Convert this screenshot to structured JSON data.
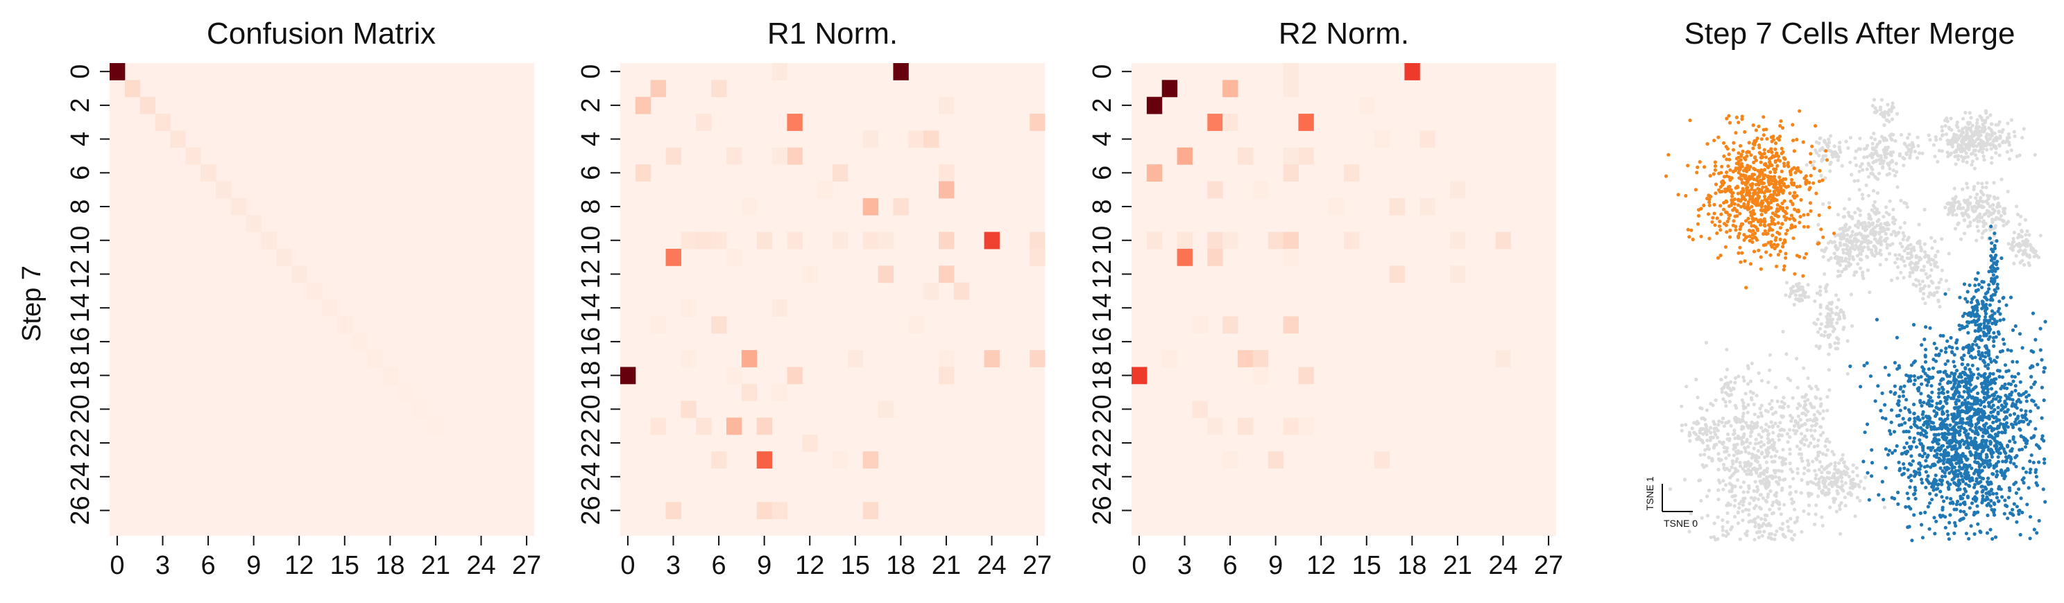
{
  "chart_data": [
    {
      "type": "heatmap",
      "title": "Confusion Matrix",
      "ylabel": "Step 7",
      "xlabel": "",
      "n_cols": 28,
      "n_rows": 28,
      "xticks": [
        "0",
        "3",
        "6",
        "9",
        "12",
        "15",
        "18",
        "21",
        "24",
        "27"
      ],
      "xtick_positions": [
        0,
        3,
        6,
        9,
        12,
        15,
        18,
        21,
        24,
        27
      ],
      "yticks": [
        "0",
        "2",
        "4",
        "6",
        "8",
        "10",
        "12",
        "14",
        "16",
        "18",
        "20",
        "22",
        "24",
        "26"
      ],
      "yticks_row": [
        0,
        2,
        4,
        6,
        8,
        10,
        12,
        14,
        16,
        18,
        20,
        22,
        24,
        26
      ],
      "colormap": [
        "#fff5f0",
        "#fee0d2",
        "#fcbba1",
        "#fc9272",
        "#fb6a4a",
        "#ef3b2c",
        "#cb181d",
        "#67000d"
      ],
      "background_value": 0.04,
      "cells": [
        [
          0,
          0,
          1.0
        ],
        [
          1,
          1,
          0.16
        ],
        [
          2,
          2,
          0.14
        ],
        [
          3,
          3,
          0.12
        ],
        [
          4,
          4,
          0.11
        ],
        [
          5,
          5,
          0.1
        ],
        [
          6,
          6,
          0.1
        ],
        [
          7,
          7,
          0.09
        ],
        [
          8,
          8,
          0.09
        ],
        [
          9,
          9,
          0.08
        ],
        [
          10,
          10,
          0.08
        ],
        [
          11,
          11,
          0.08
        ],
        [
          12,
          12,
          0.08
        ],
        [
          13,
          13,
          0.07
        ],
        [
          14,
          14,
          0.07
        ],
        [
          15,
          15,
          0.07
        ],
        [
          16,
          16,
          0.06
        ],
        [
          17,
          17,
          0.06
        ],
        [
          18,
          18,
          0.06
        ],
        [
          19,
          19,
          0.05
        ],
        [
          20,
          20,
          0.05
        ],
        [
          21,
          21,
          0.05
        ]
      ]
    },
    {
      "type": "heatmap",
      "title": "R1 Norm.",
      "xlabel": "",
      "ylabel": "",
      "n_cols": 28,
      "n_rows": 28,
      "xticks": [
        "0",
        "3",
        "6",
        "9",
        "12",
        "15",
        "18",
        "21",
        "24",
        "27"
      ],
      "xtick_positions": [
        0,
        3,
        6,
        9,
        12,
        15,
        18,
        21,
        24,
        27
      ],
      "yticks": [
        "0",
        "2",
        "4",
        "6",
        "8",
        "10",
        "12",
        "14",
        "16",
        "18",
        "20",
        "22",
        "24",
        "26"
      ],
      "yticks_row": [
        0,
        2,
        4,
        6,
        8,
        10,
        12,
        14,
        16,
        18,
        20,
        22,
        24,
        26
      ],
      "colormap": [
        "#fff5f0",
        "#fee0d2",
        "#fcbba1",
        "#fc9272",
        "#fb6a4a",
        "#ef3b2c",
        "#cb181d",
        "#67000d"
      ],
      "background_value": 0.03,
      "cells": [
        [
          0,
          18,
          1.0
        ],
        [
          0,
          10,
          0.08
        ],
        [
          1,
          2,
          0.22
        ],
        [
          1,
          6,
          0.14
        ],
        [
          2,
          1,
          0.24
        ],
        [
          2,
          21,
          0.08
        ],
        [
          3,
          5,
          0.1
        ],
        [
          3,
          11,
          0.5
        ],
        [
          3,
          27,
          0.2
        ],
        [
          4,
          16,
          0.08
        ],
        [
          4,
          19,
          0.1
        ],
        [
          4,
          20,
          0.16
        ],
        [
          5,
          3,
          0.14
        ],
        [
          5,
          7,
          0.1
        ],
        [
          5,
          11,
          0.2
        ],
        [
          5,
          10,
          0.08
        ],
        [
          6,
          1,
          0.16
        ],
        [
          6,
          14,
          0.14
        ],
        [
          6,
          21,
          0.1
        ],
        [
          7,
          21,
          0.28
        ],
        [
          7,
          13,
          0.06
        ],
        [
          8,
          16,
          0.3
        ],
        [
          8,
          18,
          0.14
        ],
        [
          8,
          8,
          0.06
        ],
        [
          10,
          4,
          0.1
        ],
        [
          10,
          5,
          0.12
        ],
        [
          10,
          6,
          0.1
        ],
        [
          10,
          9,
          0.12
        ],
        [
          10,
          11,
          0.1
        ],
        [
          10,
          14,
          0.08
        ],
        [
          10,
          16,
          0.1
        ],
        [
          10,
          17,
          0.08
        ],
        [
          10,
          21,
          0.18
        ],
        [
          10,
          24,
          0.7
        ],
        [
          10,
          27,
          0.14
        ],
        [
          11,
          3,
          0.52
        ],
        [
          11,
          7,
          0.06
        ],
        [
          11,
          27,
          0.12
        ],
        [
          12,
          17,
          0.18
        ],
        [
          12,
          21,
          0.2
        ],
        [
          12,
          12,
          0.06
        ],
        [
          13,
          22,
          0.14
        ],
        [
          13,
          20,
          0.08
        ],
        [
          14,
          4,
          0.06
        ],
        [
          14,
          10,
          0.08
        ],
        [
          15,
          6,
          0.14
        ],
        [
          15,
          2,
          0.06
        ],
        [
          15,
          19,
          0.06
        ],
        [
          17,
          8,
          0.34
        ],
        [
          17,
          4,
          0.06
        ],
        [
          17,
          15,
          0.08
        ],
        [
          17,
          24,
          0.22
        ],
        [
          17,
          27,
          0.18
        ],
        [
          17,
          21,
          0.06
        ],
        [
          18,
          0,
          1.0
        ],
        [
          18,
          11,
          0.18
        ],
        [
          18,
          21,
          0.12
        ],
        [
          18,
          7,
          0.06
        ],
        [
          19,
          8,
          0.12
        ],
        [
          19,
          10,
          0.06
        ],
        [
          20,
          4,
          0.14
        ],
        [
          20,
          17,
          0.08
        ],
        [
          21,
          2,
          0.1
        ],
        [
          21,
          7,
          0.3
        ],
        [
          21,
          9,
          0.18
        ],
        [
          21,
          5,
          0.12
        ],
        [
          22,
          12,
          0.1
        ],
        [
          23,
          9,
          0.6
        ],
        [
          23,
          6,
          0.12
        ],
        [
          23,
          16,
          0.2
        ],
        [
          23,
          14,
          0.06
        ],
        [
          26,
          3,
          0.16
        ],
        [
          26,
          9,
          0.16
        ],
        [
          26,
          10,
          0.12
        ],
        [
          26,
          16,
          0.16
        ]
      ]
    },
    {
      "type": "heatmap",
      "title": "R2 Norm.",
      "xlabel": "",
      "ylabel": "",
      "n_cols": 28,
      "n_rows": 28,
      "xticks": [
        "0",
        "3",
        "6",
        "9",
        "12",
        "15",
        "18",
        "21",
        "24",
        "27"
      ],
      "xtick_positions": [
        0,
        3,
        6,
        9,
        12,
        15,
        18,
        21,
        24,
        27
      ],
      "yticks": [
        "0",
        "2",
        "4",
        "6",
        "8",
        "10",
        "12",
        "14",
        "16",
        "18",
        "20",
        "22",
        "24",
        "26"
      ],
      "yticks_row": [
        0,
        2,
        4,
        6,
        8,
        10,
        12,
        14,
        16,
        18,
        20,
        22,
        24,
        26
      ],
      "colormap": [
        "#fff5f0",
        "#fee0d2",
        "#fcbba1",
        "#fc9272",
        "#fb6a4a",
        "#ef3b2c",
        "#cb181d",
        "#67000d"
      ],
      "background_value": 0.03,
      "cells": [
        [
          0,
          18,
          0.72
        ],
        [
          0,
          10,
          0.08
        ],
        [
          1,
          2,
          1.0
        ],
        [
          1,
          6,
          0.3
        ],
        [
          1,
          10,
          0.08
        ],
        [
          2,
          1,
          1.0
        ],
        [
          2,
          15,
          0.06
        ],
        [
          3,
          5,
          0.5
        ],
        [
          3,
          11,
          0.56
        ],
        [
          3,
          6,
          0.1
        ],
        [
          4,
          19,
          0.1
        ],
        [
          4,
          16,
          0.06
        ],
        [
          5,
          3,
          0.34
        ],
        [
          5,
          7,
          0.12
        ],
        [
          5,
          11,
          0.12
        ],
        [
          5,
          10,
          0.08
        ],
        [
          6,
          1,
          0.3
        ],
        [
          6,
          10,
          0.14
        ],
        [
          6,
          14,
          0.12
        ],
        [
          7,
          5,
          0.14
        ],
        [
          7,
          8,
          0.06
        ],
        [
          7,
          21,
          0.08
        ],
        [
          8,
          17,
          0.12
        ],
        [
          8,
          19,
          0.08
        ],
        [
          8,
          13,
          0.06
        ],
        [
          10,
          1,
          0.1
        ],
        [
          10,
          3,
          0.1
        ],
        [
          10,
          5,
          0.14
        ],
        [
          10,
          6,
          0.08
        ],
        [
          10,
          9,
          0.14
        ],
        [
          10,
          10,
          0.18
        ],
        [
          10,
          14,
          0.1
        ],
        [
          10,
          21,
          0.08
        ],
        [
          10,
          24,
          0.14
        ],
        [
          11,
          3,
          0.54
        ],
        [
          11,
          5,
          0.18
        ],
        [
          11,
          10,
          0.06
        ],
        [
          12,
          17,
          0.14
        ],
        [
          12,
          21,
          0.08
        ],
        [
          15,
          6,
          0.14
        ],
        [
          15,
          10,
          0.18
        ],
        [
          15,
          4,
          0.06
        ],
        [
          17,
          7,
          0.2
        ],
        [
          17,
          8,
          0.16
        ],
        [
          17,
          2,
          0.06
        ],
        [
          17,
          24,
          0.08
        ],
        [
          18,
          0,
          0.72
        ],
        [
          18,
          11,
          0.16
        ],
        [
          18,
          8,
          0.06
        ],
        [
          20,
          4,
          0.1
        ],
        [
          21,
          5,
          0.08
        ],
        [
          21,
          7,
          0.12
        ],
        [
          21,
          10,
          0.1
        ],
        [
          21,
          11,
          0.06
        ],
        [
          23,
          9,
          0.14
        ],
        [
          23,
          16,
          0.1
        ],
        [
          23,
          6,
          0.06
        ]
      ]
    },
    {
      "type": "scatter",
      "title": "Step 7 Cells After Merge",
      "xlabel": "TSNE 0",
      "ylabel": "TSNE 1",
      "xlim": [
        -100,
        100
      ],
      "ylim": [
        -100,
        100
      ],
      "grid": false,
      "legend": "none",
      "seed": 7,
      "series": [
        {
          "color": "#dcdcdc",
          "clusters": [
            {
              "cx": 22,
              "cy": 84,
              "sx": 3,
              "sy": 3,
              "n": 30
            },
            {
              "cx": -6,
              "cy": 66,
              "sx": 5,
              "sy": 4,
              "n": 60
            },
            {
              "cx": 19,
              "cy": 64,
              "sx": 7,
              "sy": 6,
              "n": 120
            },
            {
              "cx": 36,
              "cy": 68,
              "sx": 2,
              "sy": 3,
              "n": 20
            },
            {
              "cx": 70,
              "cy": 72,
              "sx": 10,
              "sy": 5,
              "n": 300
            },
            {
              "cx": 58,
              "cy": 42,
              "sx": 3,
              "sy": 2,
              "n": 30
            },
            {
              "cx": 74,
              "cy": 40,
              "sx": 8,
              "sy": 6,
              "n": 160
            },
            {
              "cx": 96,
              "cy": 24,
              "sx": 4,
              "sy": 4,
              "n": 70
            },
            {
              "cx": 16,
              "cy": 30,
              "sx": 10,
              "sy": 8,
              "n": 240
            },
            {
              "cx": 0,
              "cy": 22,
              "sx": 6,
              "sy": 5,
              "n": 80
            },
            {
              "cx": -6,
              "cy": -10,
              "sx": 5,
              "sy": 8,
              "n": 90
            },
            {
              "cx": -22,
              "cy": 4,
              "sx": 4,
              "sy": 3,
              "n": 40
            },
            {
              "cx": 40,
              "cy": 18,
              "sx": 6,
              "sy": 4,
              "n": 90
            },
            {
              "cx": 46,
              "cy": 4,
              "sx": 4,
              "sy": 3,
              "n": 30
            },
            {
              "cx": -46,
              "cy": -68,
              "sx": 16,
              "sy": 18,
              "n": 600
            },
            {
              "cx": -16,
              "cy": -54,
              "sx": 4,
              "sy": 10,
              "n": 80
            },
            {
              "cx": -4,
              "cy": -80,
              "sx": 8,
              "sy": 6,
              "n": 150
            },
            {
              "cx": -60,
              "cy": -38,
              "sx": 2,
              "sy": 3,
              "n": 20
            },
            {
              "cx": -72,
              "cy": -58,
              "sx": 4,
              "sy": 4,
              "n": 40
            },
            {
              "cx": -40,
              "cy": -108,
              "sx": 16,
              "sy": 6,
              "n": 140
            }
          ]
        },
        {
          "color": "#f58518",
          "clusters": [
            {
              "cx": -44,
              "cy": 48,
              "sx": 14,
              "sy": 14,
              "n": 720
            }
          ]
        },
        {
          "color": "#1f77b4",
          "clusters": [
            {
              "cx": 66,
              "cy": -58,
              "sx": 20,
              "sy": 22,
              "n": 1600
            },
            {
              "cx": 74,
              "cy": -6,
              "sx": 5,
              "sy": 10,
              "n": 160
            },
            {
              "cx": 80,
              "cy": 18,
              "sx": 1.5,
              "sy": 6,
              "n": 40
            }
          ]
        }
      ]
    }
  ]
}
